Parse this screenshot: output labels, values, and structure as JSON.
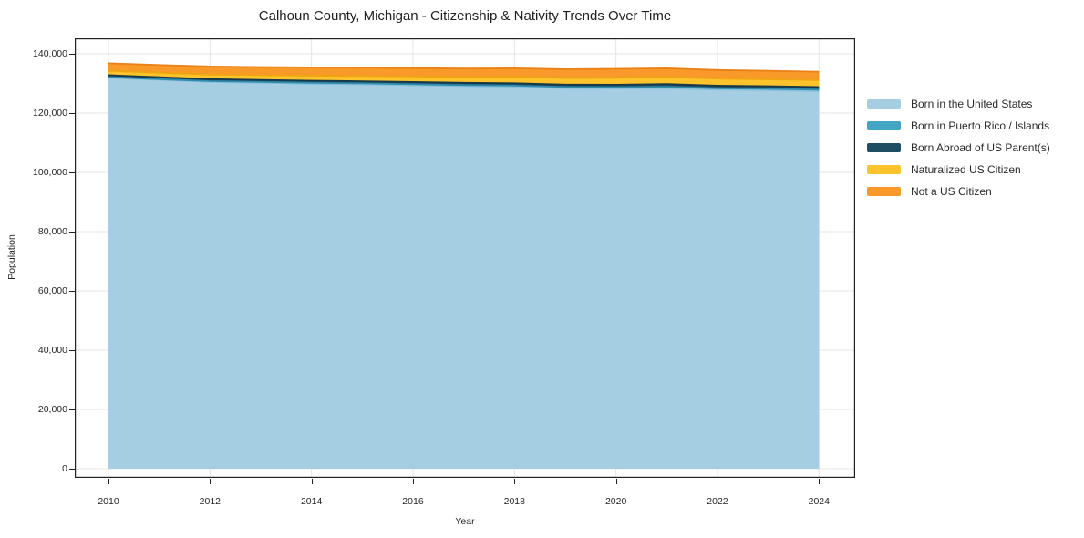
{
  "chart_data": {
    "type": "area",
    "stacked": true,
    "title": "Calhoun County, Michigan - Citizenship & Nativity Trends Over Time",
    "xlabel": "Year",
    "ylabel": "Population",
    "grid": true,
    "legend_position": "right-outside",
    "xlim": [
      2009.3,
      2024.7
    ],
    "ylim": [
      -3100,
      145200
    ],
    "x": [
      2010,
      2011,
      2012,
      2013,
      2014,
      2015,
      2016,
      2017,
      2018,
      2019,
      2020,
      2021,
      2022,
      2023,
      2024
    ],
    "series": [
      {
        "name": "Born in the United States",
        "color": "#a6cee3",
        "edge_color": "#8abfdb",
        "values": [
          131900,
          131200,
          130500,
          130200,
          129900,
          129700,
          129400,
          129100,
          128900,
          128400,
          128300,
          128400,
          127900,
          127700,
          127400
        ]
      },
      {
        "name": "Born in Puerto Rico / Islands",
        "color": "#45a5c5",
        "edge_color": "#2f8cad",
        "values": [
          250,
          260,
          280,
          300,
          310,
          320,
          330,
          350,
          370,
          390,
          420,
          450,
          470,
          490,
          500
        ]
      },
      {
        "name": "Born Abroad of US Parent(s)",
        "color": "#1f4e63",
        "edge_color": "#15384a",
        "values": [
          650,
          660,
          680,
          700,
          720,
          730,
          750,
          760,
          780,
          800,
          850,
          950,
          900,
          880,
          900
        ]
      },
      {
        "name": "Naturalized US Citizen",
        "color": "#fcc32d",
        "edge_color": "#eea511",
        "values": [
          1450,
          1500,
          1550,
          1600,
          1700,
          1750,
          1850,
          1950,
          2200,
          2250,
          2350,
          2400,
          2350,
          2320,
          2300
        ]
      },
      {
        "name": "Not a US Citizen",
        "color": "#f8992a",
        "edge_color": "#e98116",
        "values": [
          2550,
          2600,
          2700,
          2750,
          2800,
          2820,
          2850,
          2900,
          2850,
          2950,
          3000,
          2900,
          2900,
          2880,
          2850
        ]
      }
    ],
    "x_ticks": {
      "values": [
        2010,
        2012,
        2014,
        2016,
        2018,
        2020,
        2022,
        2024
      ],
      "labels": [
        "2010",
        "2012",
        "2014",
        "2016",
        "2018",
        "2020",
        "2022",
        "2024"
      ]
    },
    "y_ticks": {
      "values": [
        0,
        20000,
        40000,
        60000,
        80000,
        100000,
        120000,
        140000
      ],
      "labels": [
        "0",
        "20,000",
        "40,000",
        "60,000",
        "80,000",
        "100,000",
        "120,000",
        "140,000"
      ]
    }
  },
  "colors": {
    "grid": "#e4e4e4",
    "axis_border": "#222222",
    "background": "#ffffff"
  }
}
